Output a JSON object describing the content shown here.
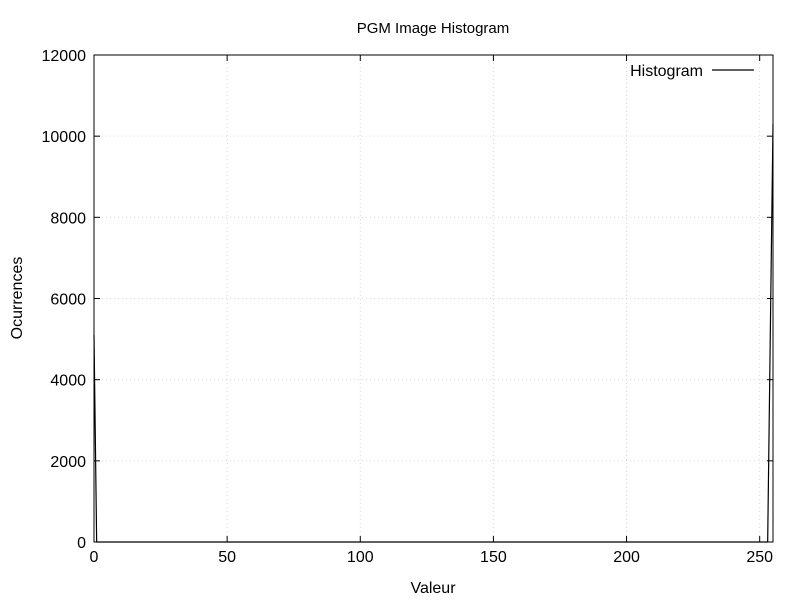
{
  "chart_data": {
    "type": "line",
    "title": "PGM Image Histogram",
    "xlabel": "Valeur",
    "ylabel": "Ocurrences",
    "xlim": [
      0,
      255
    ],
    "ylim": [
      0,
      12000
    ],
    "x_ticks": [
      0,
      50,
      100,
      150,
      200,
      250
    ],
    "y_ticks": [
      0,
      2000,
      4000,
      6000,
      8000,
      10000,
      12000
    ],
    "grid": true,
    "legend_position": "top-right",
    "series": [
      {
        "name": "Histogram",
        "color": "#000000",
        "x": [
          0,
          1,
          2,
          253,
          254,
          255
        ],
        "y": [
          5100,
          0,
          0,
          0,
          5200,
          10300
        ]
      }
    ]
  }
}
